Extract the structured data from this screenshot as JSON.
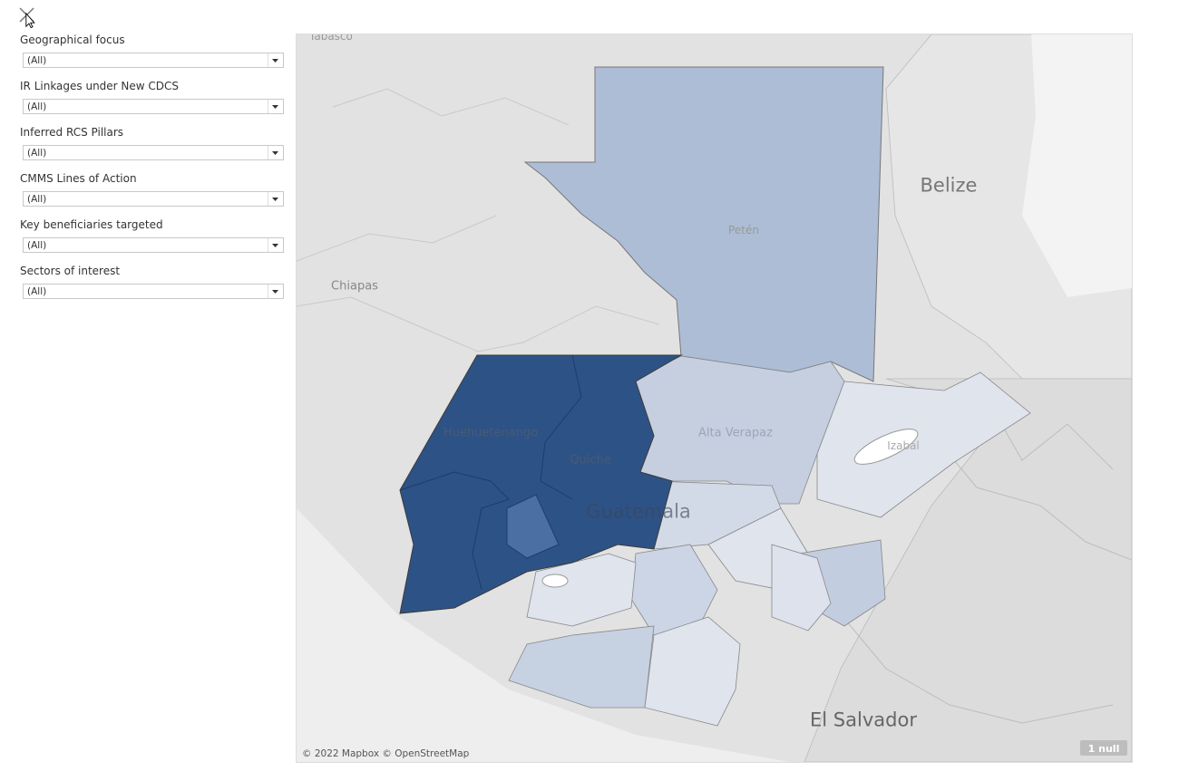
{
  "filters": [
    {
      "label": "Geographical focus",
      "value": "(All)"
    },
    {
      "label": "IR Linkages under New CDCS",
      "value": "(All)"
    },
    {
      "label": "Inferred RCS Pillars",
      "value": "(All)"
    },
    {
      "label": "CMMS Lines of Action",
      "value": "(All)"
    },
    {
      "label": "Key beneficiaries targeted",
      "value": "(All)"
    },
    {
      "label": "Sectors of interest",
      "value": "(All)"
    }
  ],
  "map": {
    "labels": {
      "tabasco": "Tabasco",
      "peten": "Petén",
      "belize": "Belize",
      "chiapas": "Chiapas",
      "huehuetenango": "Huehuetenango",
      "quiche": "Quiche",
      "alta_verapaz": "Alta Verapaz",
      "izabal": "Izabal",
      "guatemala": "Guatemala",
      "el_salvador": "El Salvador"
    },
    "attribution": "© 2022 Mapbox © OpenStreetMap",
    "null_badge": "1 null"
  }
}
